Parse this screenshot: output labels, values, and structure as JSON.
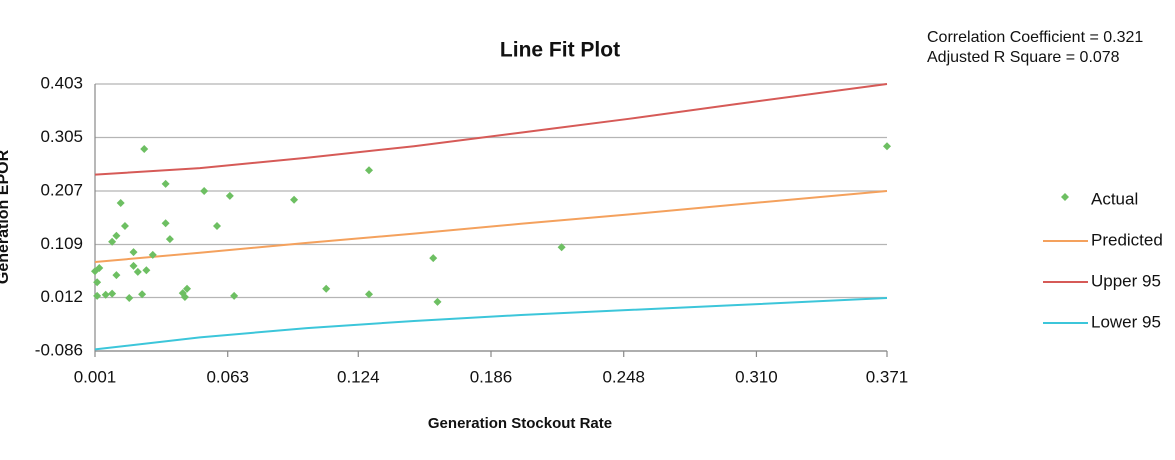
{
  "chart_data": {
    "type": "scatter",
    "title": "Line Fit Plot",
    "x_label": "Generation Stockout Rate",
    "y_label": "Generation EPOR",
    "annotations": [
      "Correlation Coefficient = 0.321",
      "Adjusted R Square = 0.078"
    ],
    "xlim": [
      0.001,
      0.371
    ],
    "ylim": [
      -0.086,
      0.403
    ],
    "xticks": [
      0.001,
      0.063,
      0.124,
      0.186,
      0.248,
      {
        "value": 0.31,
        "label": "0.310"
      },
      0.371
    ],
    "yticks": [
      0.403,
      0.305,
      0.207,
      0.109,
      0.012,
      -0.086
    ],
    "grid": true,
    "legend": "right",
    "series": [
      {
        "name": "Actual",
        "color": "#6dbf62",
        "style": "markers",
        "x": [
          0.001,
          0.002,
          0.003,
          0.002,
          0.006,
          0.009,
          0.009,
          0.011,
          0.013,
          0.011,
          0.015,
          0.017,
          0.019,
          0.019,
          0.021,
          0.023,
          0.025,
          0.024,
          0.028,
          0.034,
          0.034,
          0.036,
          0.042,
          0.043,
          0.044,
          0.052,
          0.058,
          0.064,
          0.066,
          0.094,
          0.109,
          0.129,
          0.129,
          0.159,
          0.161,
          0.219,
          0.371
        ],
        "values": [
          0.06,
          0.04,
          0.066,
          0.015,
          0.017,
          0.019,
          0.114,
          0.125,
          0.185,
          0.053,
          0.143,
          0.011,
          0.095,
          0.07,
          0.059,
          0.018,
          0.062,
          0.284,
          0.09,
          0.22,
          0.148,
          0.119,
          0.02,
          0.013,
          0.028,
          0.207,
          0.143,
          0.198,
          0.015,
          0.191,
          0.028,
          0.245,
          0.018,
          0.084,
          0.004,
          0.104,
          0.289
        ]
      },
      {
        "name": "Predicted",
        "color": "#f4a15d",
        "style": "line",
        "x": [
          0.001,
          0.05,
          0.1,
          0.15,
          0.2,
          0.25,
          0.3,
          0.371
        ],
        "values": [
          0.077,
          0.094,
          0.112,
          0.129,
          0.147,
          0.164,
          0.182,
          0.207
        ]
      },
      {
        "name": "Upper 95",
        "color": "#d65a57",
        "style": "line",
        "x": [
          0.001,
          0.05,
          0.1,
          0.15,
          0.2,
          0.25,
          0.3,
          0.371
        ],
        "values": [
          0.237,
          0.249,
          0.268,
          0.289,
          0.314,
          0.339,
          0.366,
          0.403
        ]
      },
      {
        "name": "Lower 95",
        "color": "#3cc6da",
        "style": "line",
        "x": [
          0.001,
          0.05,
          0.1,
          0.15,
          0.2,
          0.25,
          0.3,
          0.371
        ],
        "values": [
          -0.083,
          -0.061,
          -0.044,
          -0.031,
          -0.02,
          -0.011,
          -0.002,
          0.011
        ]
      }
    ]
  }
}
